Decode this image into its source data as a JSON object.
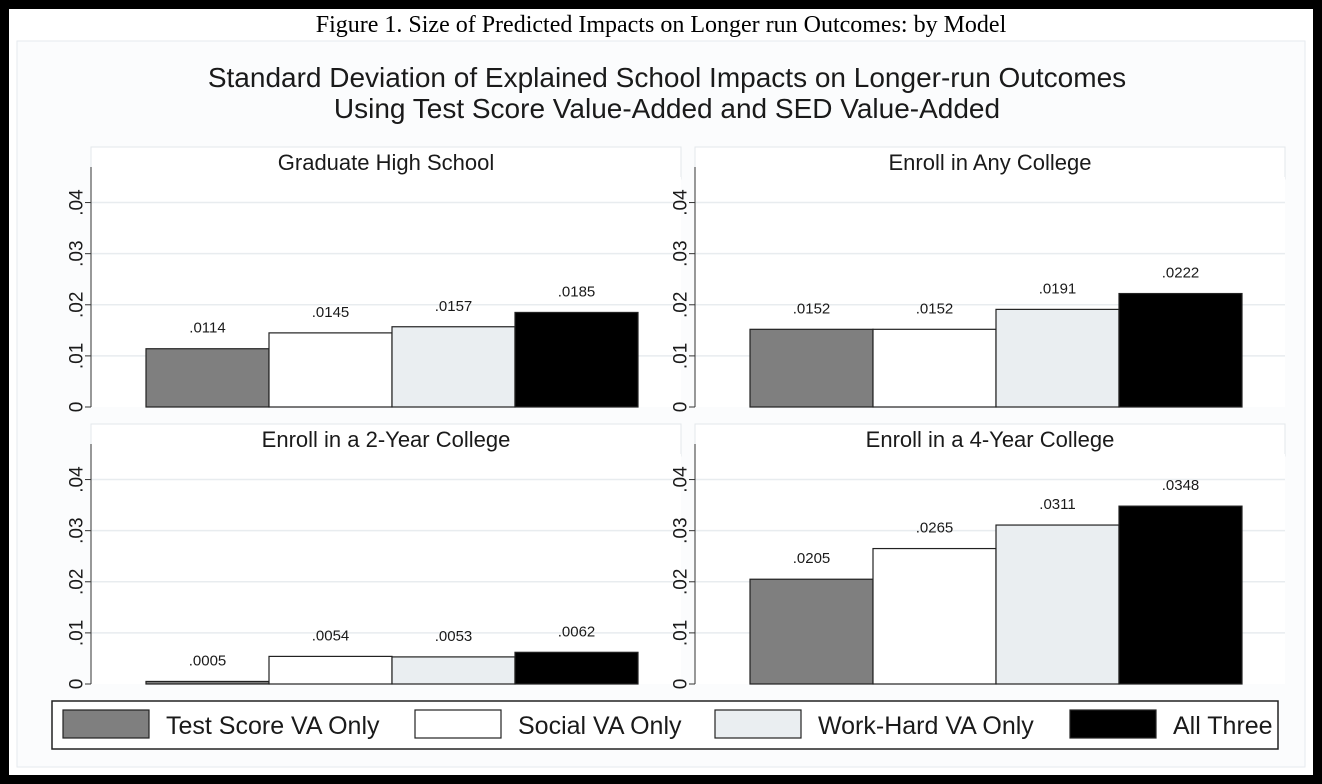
{
  "figure_caption": "Figure 1. Size of Predicted Impacts on Longer run Outcomes: by Model",
  "chart_data": {
    "type": "bar",
    "title": "Standard Deviation of Explained School Impacts on Longer-run Outcomes",
    "subtitle": "Using Test Score Value-Added and SED Value-Added",
    "ylim": [
      0,
      0.045
    ],
    "yticks": [
      0,
      0.01,
      0.02,
      0.03,
      0.04
    ],
    "ytick_labels": [
      "0",
      ".01",
      ".02",
      ".03",
      ".04"
    ],
    "grid": true,
    "legend_position": "bottom",
    "series": [
      {
        "name": "Test Score VA Only",
        "color": "#7f7f7f"
      },
      {
        "name": "Social VA Only",
        "color": "#ffffff"
      },
      {
        "name": "Work-Hard VA Only",
        "color": "#eaeef1"
      },
      {
        "name": "All Three",
        "color": "#000000"
      }
    ],
    "panels": [
      {
        "title": "Graduate High School",
        "values": [
          0.0114,
          0.0145,
          0.0157,
          0.0185
        ],
        "labels": [
          ".0114",
          ".0145",
          ".0157",
          ".0185"
        ]
      },
      {
        "title": "Enroll in Any College",
        "values": [
          0.0152,
          0.0152,
          0.0191,
          0.0222
        ],
        "labels": [
          ".0152",
          ".0152",
          ".0191",
          ".0222"
        ]
      },
      {
        "title": "Enroll in a 2-Year College",
        "values": [
          0.0005,
          0.0054,
          0.0053,
          0.0062
        ],
        "labels": [
          ".0005",
          ".0054",
          ".0053",
          ".0062"
        ]
      },
      {
        "title": "Enroll in a 4-Year College",
        "values": [
          0.0205,
          0.0265,
          0.0311,
          0.0348
        ],
        "labels": [
          ".0205",
          ".0265",
          ".0311",
          ".0348"
        ]
      }
    ]
  }
}
